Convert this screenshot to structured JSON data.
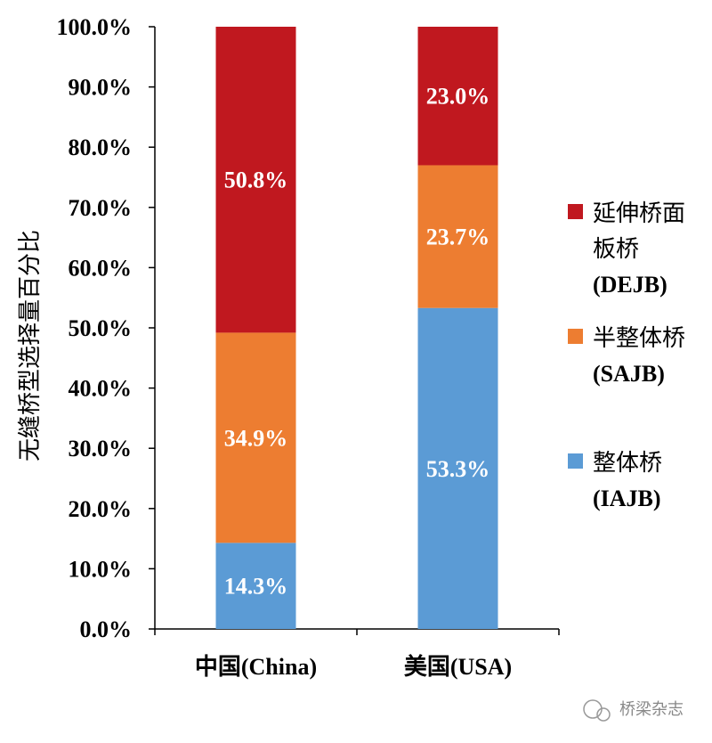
{
  "chart_data": {
    "type": "bar",
    "stacked": true,
    "categories": [
      "中国(China)",
      "美国(USA)"
    ],
    "series": [
      {
        "name": "整体桥",
        "name2": "(IAJB)",
        "color": "#5b9bd5",
        "values": [
          14.3,
          53.3
        ],
        "labels": [
          "14.3%",
          "53.3%"
        ]
      },
      {
        "name": "半整体桥",
        "name2": "(SAJB)",
        "color": "#ed7d31",
        "values": [
          34.9,
          23.7
        ],
        "labels": [
          "34.9%",
          "23.7%"
        ]
      },
      {
        "name": "延伸桥面",
        "name1b": "板桥",
        "name2": "(DEJB)",
        "color": "#c0181f",
        "values": [
          50.8,
          23.0
        ],
        "labels": [
          "50.8%",
          "23.0%"
        ]
      }
    ],
    "ylabel": "无缝桥型选择量百分比",
    "ylim": [
      0,
      100
    ],
    "yticks": [
      "0.0%",
      "10.0%",
      "20.0%",
      "30.0%",
      "40.0%",
      "50.0%",
      "60.0%",
      "70.0%",
      "80.0%",
      "90.0%",
      "100.0%"
    ],
    "grid": false,
    "legend_position": "right"
  },
  "watermark": "桥梁杂志"
}
